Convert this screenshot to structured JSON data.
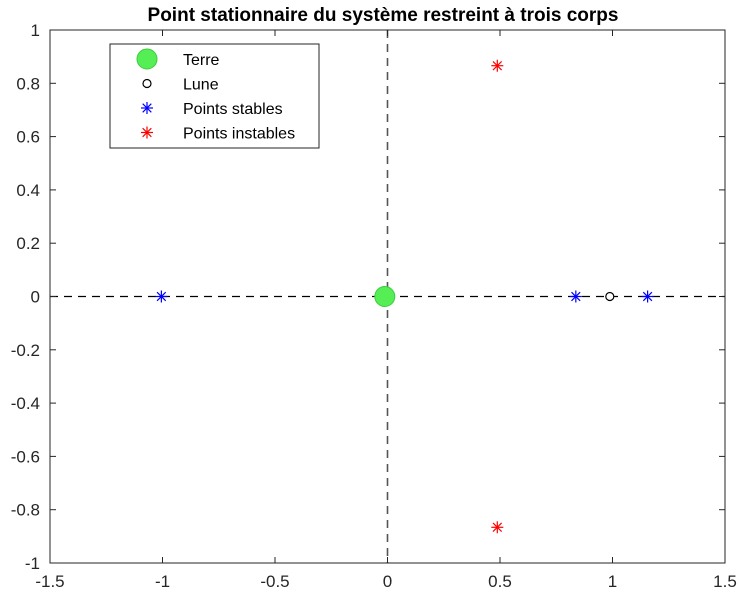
{
  "chart_data": {
    "type": "scatter",
    "title": "Point stationnaire du système restreint à trois corps",
    "xlabel": "",
    "ylabel": "",
    "xlim": [
      -1.5,
      1.5
    ],
    "ylim": [
      -1,
      1
    ],
    "x_ticks": [
      -1.5,
      -1,
      -0.5,
      0,
      0.5,
      1,
      1.5
    ],
    "y_ticks": [
      -1,
      -0.8,
      -0.6,
      -0.4,
      -0.2,
      0,
      0.2,
      0.4,
      0.6,
      0.8,
      1
    ],
    "x_tick_labels": [
      "-1.5",
      "-1",
      "-0.5",
      "0",
      "0.5",
      "1",
      "1.5"
    ],
    "y_tick_labels": [
      "-1",
      "-0.8",
      "-0.6",
      "-0.4",
      "-0.2",
      "0",
      "0.2",
      "0.4",
      "0.6",
      "0.8",
      "1"
    ],
    "grid": false,
    "legend_position": "top-left",
    "reference_lines": [
      {
        "orientation": "horizontal",
        "value": 0,
        "style": "dashed",
        "color": "#000000"
      },
      {
        "orientation": "vertical",
        "value": 0,
        "style": "dashed",
        "color": "#555555"
      }
    ],
    "series": [
      {
        "name": "Terre",
        "marker": "filled-circle",
        "color": "#55ee55",
        "points": [
          {
            "x": -0.012,
            "y": 0
          }
        ]
      },
      {
        "name": "Lune",
        "marker": "open-circle",
        "color": "#000000",
        "points": [
          {
            "x": 0.988,
            "y": 0
          }
        ]
      },
      {
        "name": "Points stables",
        "marker": "asterisk",
        "color": "#0000ff",
        "points": [
          {
            "x": -1.005,
            "y": 0
          },
          {
            "x": 0.837,
            "y": 0
          },
          {
            "x": 1.156,
            "y": 0
          }
        ]
      },
      {
        "name": "Points instables",
        "marker": "asterisk",
        "color": "#ff0000",
        "points": [
          {
            "x": 0.488,
            "y": 0.866
          },
          {
            "x": 0.488,
            "y": -0.866
          }
        ]
      }
    ]
  }
}
